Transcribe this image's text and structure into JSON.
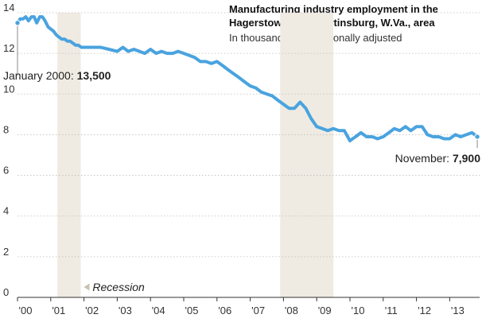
{
  "chart_data": {
    "type": "line",
    "title": "Manufacturing industry employment in the Hagerstown, Md.-Martinsburg, W.Va., area",
    "subtitle": "In thousands, not seasonally adjusted",
    "xlabel": "",
    "ylabel": "",
    "xlim": [
      2000.0,
      2013.9
    ],
    "ylim": [
      0,
      14
    ],
    "yticks": [
      0,
      2,
      4,
      6,
      8,
      10,
      12,
      14
    ],
    "xtick_labels": [
      "'00",
      "'01",
      "'02",
      "'03",
      "'04",
      "'05",
      "'06",
      "'07",
      "'08",
      "'09",
      "'10",
      "'11",
      "'12",
      "'13"
    ],
    "grid": true,
    "colors": {
      "line": "#4aa3df",
      "recession": "#efebe2",
      "legend_swatch": "#c9c2ae"
    },
    "recessions": [
      {
        "start": 2001.2,
        "end": 2001.9
      },
      {
        "start": 2007.9,
        "end": 2009.5
      }
    ],
    "legend_label": "Recession",
    "annotations": [
      {
        "id": "start",
        "label": "January 2000:",
        "value": "13,500",
        "x": 2000.0,
        "y": 13.5
      },
      {
        "id": "end",
        "label": "November:",
        "value": "7,900",
        "x": 2013.83,
        "y": 7.9
      }
    ],
    "series": [
      {
        "x": [
          2000.0,
          2000.08,
          2000.17,
          2000.25,
          2000.33,
          2000.42,
          2000.5,
          2000.58,
          2000.67,
          2000.75,
          2000.83,
          2000.92,
          2001.0,
          2001.08,
          2001.17,
          2001.25,
          2001.33,
          2001.42,
          2001.5,
          2001.58,
          2001.67,
          2001.75,
          2001.83,
          2001.92,
          2002.0,
          2002.25,
          2002.5,
          2002.75,
          2003.0,
          2003.17,
          2003.33,
          2003.5,
          2003.67,
          2003.83,
          2004.0,
          2004.17,
          2004.33,
          2004.5,
          2004.67,
          2004.83,
          2005.0,
          2005.17,
          2005.33,
          2005.5,
          2005.67,
          2005.83,
          2006.0,
          2006.17,
          2006.33,
          2006.5,
          2006.67,
          2006.83,
          2007.0,
          2007.17,
          2007.33,
          2007.5,
          2007.67,
          2007.83,
          2008.0,
          2008.17,
          2008.33,
          2008.5,
          2008.67,
          2008.83,
          2009.0,
          2009.17,
          2009.33,
          2009.5,
          2009.67,
          2009.83,
          2010.0,
          2010.08,
          2010.17,
          2010.33,
          2010.5,
          2010.67,
          2010.83,
          2011.0,
          2011.17,
          2011.33,
          2011.5,
          2011.67,
          2011.83,
          2012.0,
          2012.17,
          2012.33,
          2012.5,
          2012.67,
          2012.83,
          2013.0,
          2013.17,
          2013.33,
          2013.5,
          2013.67,
          2013.75,
          2013.83
        ],
        "values": [
          13.5,
          13.7,
          13.7,
          13.8,
          13.6,
          13.8,
          13.8,
          13.5,
          13.8,
          13.8,
          13.6,
          13.3,
          13.2,
          13.1,
          12.9,
          12.8,
          12.7,
          12.7,
          12.6,
          12.6,
          12.5,
          12.4,
          12.4,
          12.3,
          12.3,
          12.3,
          12.3,
          12.2,
          12.1,
          12.3,
          12.1,
          12.2,
          12.1,
          12.0,
          12.2,
          12.0,
          12.1,
          12.0,
          12.0,
          12.1,
          12.0,
          11.9,
          11.8,
          11.6,
          11.6,
          11.5,
          11.6,
          11.4,
          11.2,
          11.0,
          10.8,
          10.6,
          10.4,
          10.3,
          10.1,
          10.0,
          9.9,
          9.7,
          9.5,
          9.3,
          9.3,
          9.6,
          9.3,
          8.8,
          8.4,
          8.3,
          8.2,
          8.3,
          8.2,
          8.2,
          7.7,
          7.8,
          7.9,
          8.1,
          7.9,
          7.9,
          7.8,
          7.9,
          8.1,
          8.3,
          8.2,
          8.4,
          8.2,
          8.4,
          8.4,
          8.0,
          7.9,
          7.9,
          7.8,
          7.8,
          8.0,
          7.9,
          8.0,
          8.1,
          8.0,
          7.9
        ]
      }
    ]
  }
}
